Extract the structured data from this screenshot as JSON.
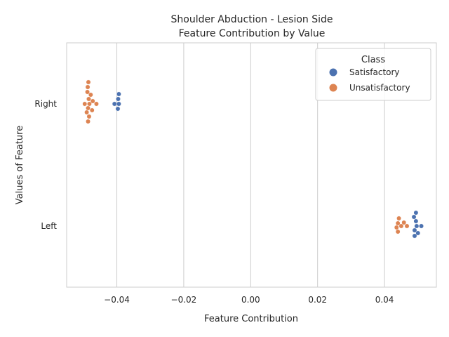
{
  "chart_data": {
    "type": "scatter",
    "subtype": "swarm",
    "title": "Shoulder Abduction - Lesion Side",
    "subtitle": "Feature Contribution by Value",
    "xlabel": "Feature Contribution",
    "ylabel": "Values of Feature",
    "xlim": [
      -0.055,
      0.0555
    ],
    "x_ticks": [
      -0.04,
      -0.02,
      0.0,
      0.02,
      0.04
    ],
    "x_tick_labels": [
      "−0.04",
      "−0.02",
      "0.00",
      "0.02",
      "0.04"
    ],
    "categories": [
      "Right",
      "Left"
    ],
    "grid": "vertical",
    "legend": {
      "title": "Class",
      "placement": "top-right"
    },
    "series": [
      {
        "name": "Satisfactory",
        "color": "#4c72b0",
        "points": [
          {
            "category": "Right",
            "x": -0.0394
          },
          {
            "category": "Right",
            "x": -0.0396
          },
          {
            "category": "Right",
            "x": -0.0407
          },
          {
            "category": "Right",
            "x": -0.0397
          },
          {
            "category": "Right",
            "x": -0.0394
          },
          {
            "category": "Left",
            "x": 0.0496
          },
          {
            "category": "Left",
            "x": 0.0494
          },
          {
            "category": "Left",
            "x": 0.049
          },
          {
            "category": "Left",
            "x": 0.05
          },
          {
            "category": "Left",
            "x": 0.0488
          },
          {
            "category": "Left",
            "x": 0.051
          },
          {
            "category": "Left",
            "x": 0.049
          },
          {
            "category": "Left",
            "x": 0.0494
          }
        ]
      },
      {
        "name": "Unsatisfactory",
        "color": "#dd8452",
        "points": [
          {
            "category": "Right",
            "x": -0.0482
          },
          {
            "category": "Right",
            "x": -0.0484
          },
          {
            "category": "Right",
            "x": -0.0472
          },
          {
            "category": "Right",
            "x": -0.0486
          },
          {
            "category": "Right",
            "x": -0.049
          },
          {
            "category": "Right",
            "x": -0.0478
          },
          {
            "category": "Right",
            "x": -0.0461
          },
          {
            "category": "Right",
            "x": -0.0496
          },
          {
            "category": "Right",
            "x": -0.0483
          },
          {
            "category": "Right",
            "x": -0.0474
          },
          {
            "category": "Right",
            "x": -0.0488
          },
          {
            "category": "Right",
            "x": -0.0487
          },
          {
            "category": "Right",
            "x": -0.0486
          },
          {
            "category": "Right",
            "x": -0.0485
          },
          {
            "category": "Left",
            "x": 0.045
          },
          {
            "category": "Left",
            "x": 0.044
          },
          {
            "category": "Left",
            "x": 0.0467
          },
          {
            "category": "Left",
            "x": 0.0436
          },
          {
            "category": "Left",
            "x": 0.0458
          },
          {
            "category": "Left",
            "x": 0.044
          },
          {
            "category": "Left",
            "x": 0.0443
          }
        ]
      }
    ]
  }
}
